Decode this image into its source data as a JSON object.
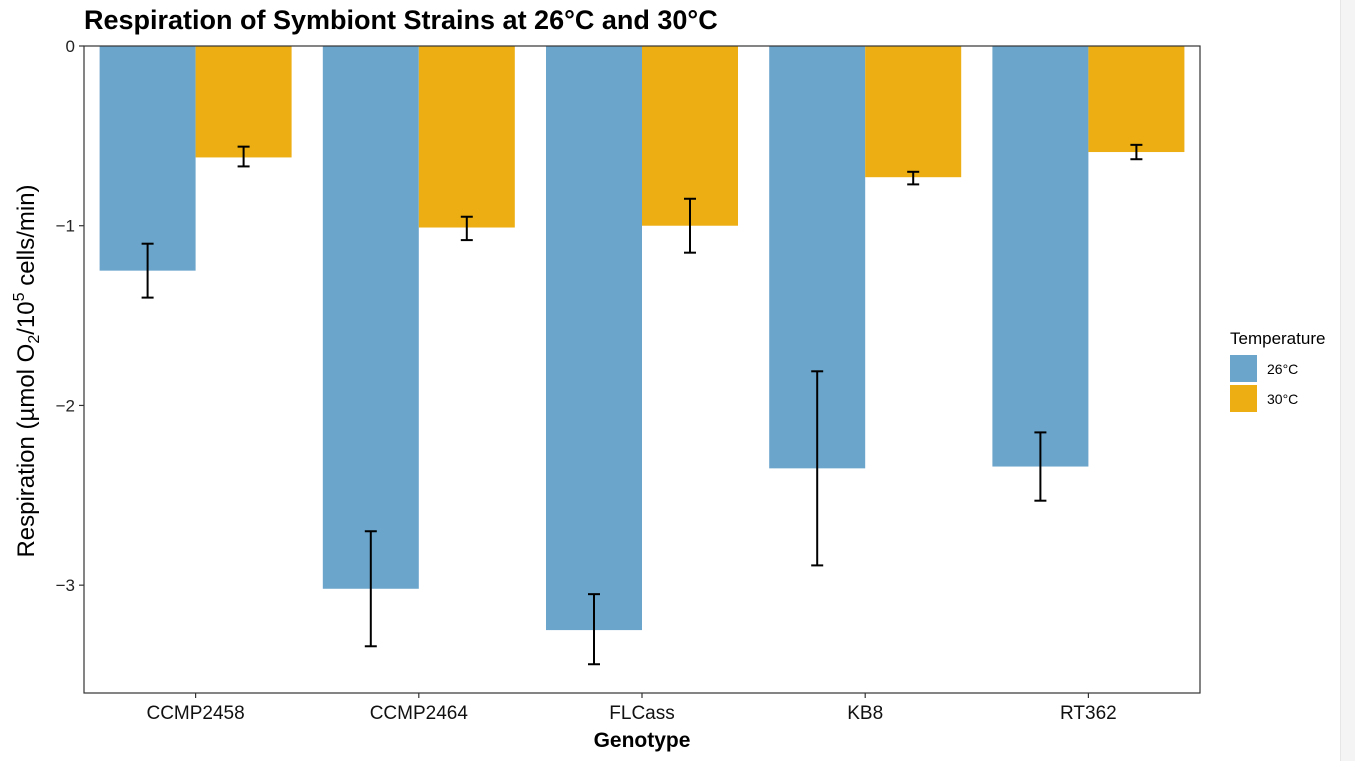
{
  "chart_data": {
    "type": "bar",
    "title": "Respiration of Symbiont Strains at 26°C and 30°C",
    "xlabel": "Genotype",
    "ylabel": {
      "prefix": "Respiration (µmol O",
      "sub": "2",
      "mid": "/10",
      "sup": "5",
      "suffix": " cells/min)"
    },
    "categories": [
      "CCMP2458",
      "CCMP2464",
      "FLCass",
      "KB8",
      "RT362"
    ],
    "series": [
      {
        "name": "26°C",
        "color": "#6BA5CC",
        "values": [
          -1.25,
          -3.02,
          -3.25,
          -2.35,
          -2.34
        ],
        "err_low": [
          -1.4,
          -3.34,
          -3.44,
          -2.89,
          -2.53
        ],
        "err_high": [
          -1.1,
          -2.7,
          -3.05,
          -1.81,
          -2.15
        ]
      },
      {
        "name": "30°C",
        "color": "#ECAE12",
        "values": [
          -0.62,
          -1.01,
          -1.0,
          -0.73,
          -0.59
        ],
        "err_low": [
          -0.67,
          -1.08,
          -1.15,
          -0.77,
          -0.63
        ],
        "err_high": [
          -0.56,
          -0.95,
          -0.85,
          -0.7,
          -0.55
        ]
      }
    ],
    "yticks": [
      0,
      -1,
      -2,
      -3
    ],
    "ytick_labels": [
      "0",
      "−1",
      "−2",
      "−3"
    ],
    "ylim": [
      -3.6,
      0
    ],
    "legend": {
      "title": "Temperature",
      "position": "right"
    },
    "grid": false
  }
}
